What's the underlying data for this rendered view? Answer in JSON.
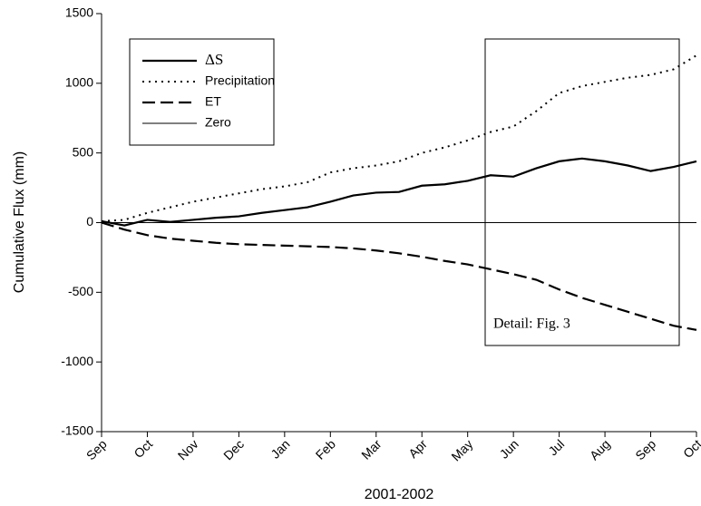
{
  "chart_data": {
    "type": "line",
    "x_label": "2001-2002",
    "y_label": "Cumulative Flux (mm)",
    "annotation": "Detail: Fig. 3",
    "x": [
      0,
      0.5,
      1,
      1.5,
      2,
      2.5,
      3,
      3.5,
      4,
      4.5,
      5,
      5.5,
      6,
      6.5,
      7,
      7.5,
      8,
      8.5,
      9,
      9.5,
      10,
      10.5,
      11,
      11.5,
      12,
      12.5,
      13
    ],
    "xlim": [
      0,
      13
    ],
    "xticks": [
      {
        "value": 0,
        "label": "Sep"
      },
      {
        "value": 1,
        "label": "Oct"
      },
      {
        "value": 2,
        "label": "Nov"
      },
      {
        "value": 3,
        "label": "Dec"
      },
      {
        "value": 4,
        "label": "Jan"
      },
      {
        "value": 5,
        "label": "Feb"
      },
      {
        "value": 6,
        "label": "Mar"
      },
      {
        "value": 7,
        "label": "Apr"
      },
      {
        "value": 8,
        "label": "May"
      },
      {
        "value": 9,
        "label": "Jun"
      },
      {
        "value": 10,
        "label": "Jul"
      },
      {
        "value": 11,
        "label": "Aug"
      },
      {
        "value": 12,
        "label": "Sep"
      },
      {
        "value": 13,
        "label": "Oct"
      }
    ],
    "ylim": [
      -1500,
      1500
    ],
    "yticks": [
      -1500,
      -1000,
      -500,
      0,
      500,
      1000,
      1500
    ],
    "legend": "upper left",
    "series": [
      {
        "name": "ΔS",
        "color": "#000000",
        "style": "solid",
        "values": [
          10,
          -20,
          20,
          5,
          20,
          35,
          45,
          70,
          90,
          110,
          150,
          195,
          215,
          220,
          265,
          275,
          300,
          340,
          330,
          390,
          440,
          460,
          440,
          410,
          370,
          400,
          440
        ]
      },
      {
        "name": "Precipitation",
        "color": "#000000",
        "style": "dotted",
        "values": [
          10,
          20,
          70,
          110,
          150,
          180,
          210,
          240,
          260,
          290,
          360,
          390,
          410,
          440,
          500,
          540,
          590,
          650,
          690,
          800,
          930,
          980,
          1010,
          1040,
          1060,
          1100,
          1200
        ]
      },
      {
        "name": "ET",
        "color": "#000000",
        "style": "dashed",
        "values": [
          0,
          -50,
          -90,
          -115,
          -130,
          -145,
          -155,
          -160,
          -165,
          -170,
          -175,
          -185,
          -200,
          -220,
          -245,
          -275,
          -300,
          -335,
          -370,
          -410,
          -480,
          -540,
          -590,
          -640,
          -690,
          -740,
          -770
        ]
      },
      {
        "name": "Zero",
        "color": "#000000",
        "style": "thin",
        "values": [
          0,
          0,
          0,
          0,
          0,
          0,
          0,
          0,
          0,
          0,
          0,
          0,
          0,
          0,
          0,
          0,
          0,
          0,
          0,
          0,
          0,
          0,
          0,
          0,
          0,
          0,
          0
        ]
      }
    ]
  }
}
